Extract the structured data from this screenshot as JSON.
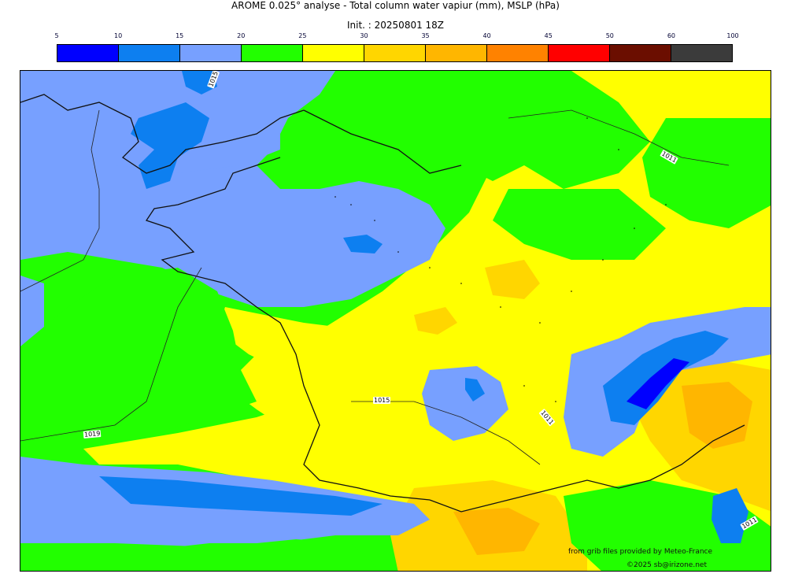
{
  "title": "AROME 0.025° analyse - Total column water vapiur (mm), MSLP (hPa)",
  "subtitle": "Init. : 20250801 18Z",
  "colorbar": {
    "ticks": [
      "5",
      "10",
      "15",
      "20",
      "25",
      "30",
      "35",
      "40",
      "45",
      "50",
      "60",
      "100"
    ],
    "colors": [
      "#0000ff",
      "#0d7ff0",
      "#77a0ff",
      "#22ff00",
      "#ffff00",
      "#ffd600",
      "#ffb600",
      "#ff8200",
      "#ff0000",
      "#6b0e00",
      "#3b3b3b"
    ]
  },
  "map": {
    "palette": {
      "low_5_10": "#0000ff",
      "low_10_15": "#0d7ff0",
      "low_15_20": "#77a0ff",
      "mid_20_25": "#22ff00",
      "mid_25_30": "#ffff00",
      "mid_30_35": "#ffd600",
      "mid_35_40": "#ffb600"
    },
    "isobar_labels": [
      "1015",
      "1011",
      "1015",
      "1019",
      "1011",
      "1011"
    ]
  },
  "credits": {
    "source": "from grib files provided by Meteo-France",
    "copyright": "©2025 sb@irizone.net"
  }
}
